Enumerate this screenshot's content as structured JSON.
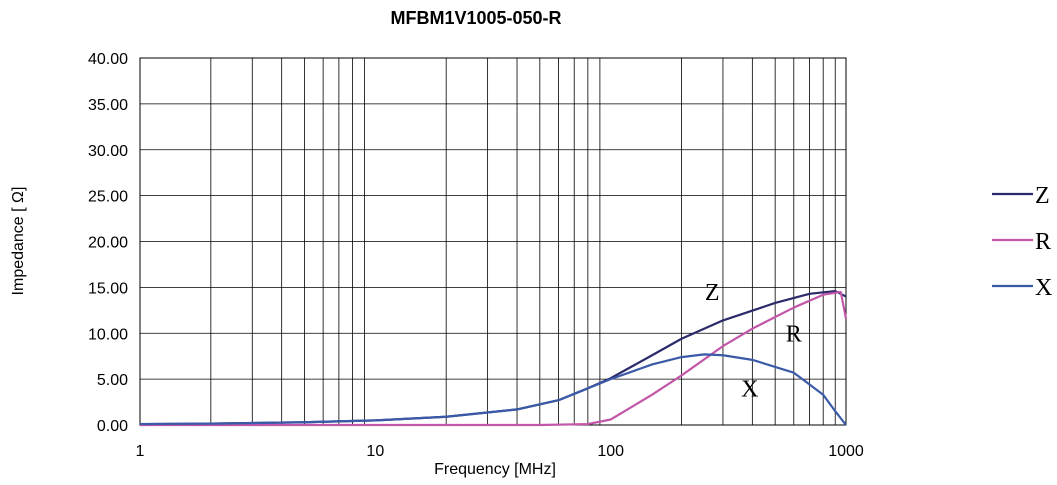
{
  "chart_data": {
    "type": "line",
    "title": "MFBM1V1005-050-R",
    "xlabel": "Frequency [MHz]",
    "ylabel": "Impedance [ Ω]",
    "x_scale": "log",
    "xlim": [
      1,
      1000
    ],
    "ylim": [
      0,
      40
    ],
    "grid": true,
    "legend_position": "right",
    "x_ticks": [
      "1",
      "10",
      "100",
      "1000"
    ],
    "y_ticks": [
      "0.00",
      "5.00",
      "10.00",
      "15.00",
      "20.00",
      "25.00",
      "30.00",
      "35.00",
      "40.00"
    ],
    "series": [
      {
        "name": "Z",
        "color": "#2b2a6b",
        "points": [
          [
            1,
            0.1
          ],
          [
            2,
            0.15
          ],
          [
            5,
            0.3
          ],
          [
            10,
            0.5
          ],
          [
            20,
            0.9
          ],
          [
            40,
            1.7
          ],
          [
            60,
            2.7
          ],
          [
            80,
            4.0
          ],
          [
            100,
            5.1
          ],
          [
            150,
            7.6
          ],
          [
            200,
            9.4
          ],
          [
            300,
            11.4
          ],
          [
            500,
            13.3
          ],
          [
            700,
            14.3
          ],
          [
            900,
            14.6
          ],
          [
            1000,
            14.0
          ]
        ]
      },
      {
        "name": "R",
        "color": "#c256a8",
        "points": [
          [
            1,
            0.0
          ],
          [
            10,
            0.0
          ],
          [
            50,
            0.0
          ],
          [
            80,
            0.1
          ],
          [
            100,
            0.6
          ],
          [
            150,
            3.3
          ],
          [
            200,
            5.4
          ],
          [
            300,
            8.6
          ],
          [
            400,
            10.5
          ],
          [
            600,
            12.8
          ],
          [
            800,
            14.2
          ],
          [
            950,
            14.5
          ],
          [
            1000,
            11.6
          ]
        ]
      },
      {
        "name": "X",
        "color": "#3a5aa8",
        "points": [
          [
            1,
            0.1
          ],
          [
            2,
            0.15
          ],
          [
            5,
            0.3
          ],
          [
            10,
            0.5
          ],
          [
            20,
            0.9
          ],
          [
            40,
            1.7
          ],
          [
            60,
            2.7
          ],
          [
            80,
            4.0
          ],
          [
            100,
            5.0
          ],
          [
            150,
            6.6
          ],
          [
            200,
            7.4
          ],
          [
            250,
            7.7
          ],
          [
            300,
            7.6
          ],
          [
            400,
            7.1
          ],
          [
            600,
            5.7
          ],
          [
            800,
            3.3
          ],
          [
            900,
            1.5
          ],
          [
            1000,
            0.0
          ]
        ]
      }
    ],
    "annotations": [
      {
        "text": "Z",
        "x": 270,
        "y": 14.5
      },
      {
        "text": "R",
        "x": 600,
        "y": 10.0
      },
      {
        "text": "X",
        "x": 390,
        "y": 4.0
      }
    ]
  }
}
